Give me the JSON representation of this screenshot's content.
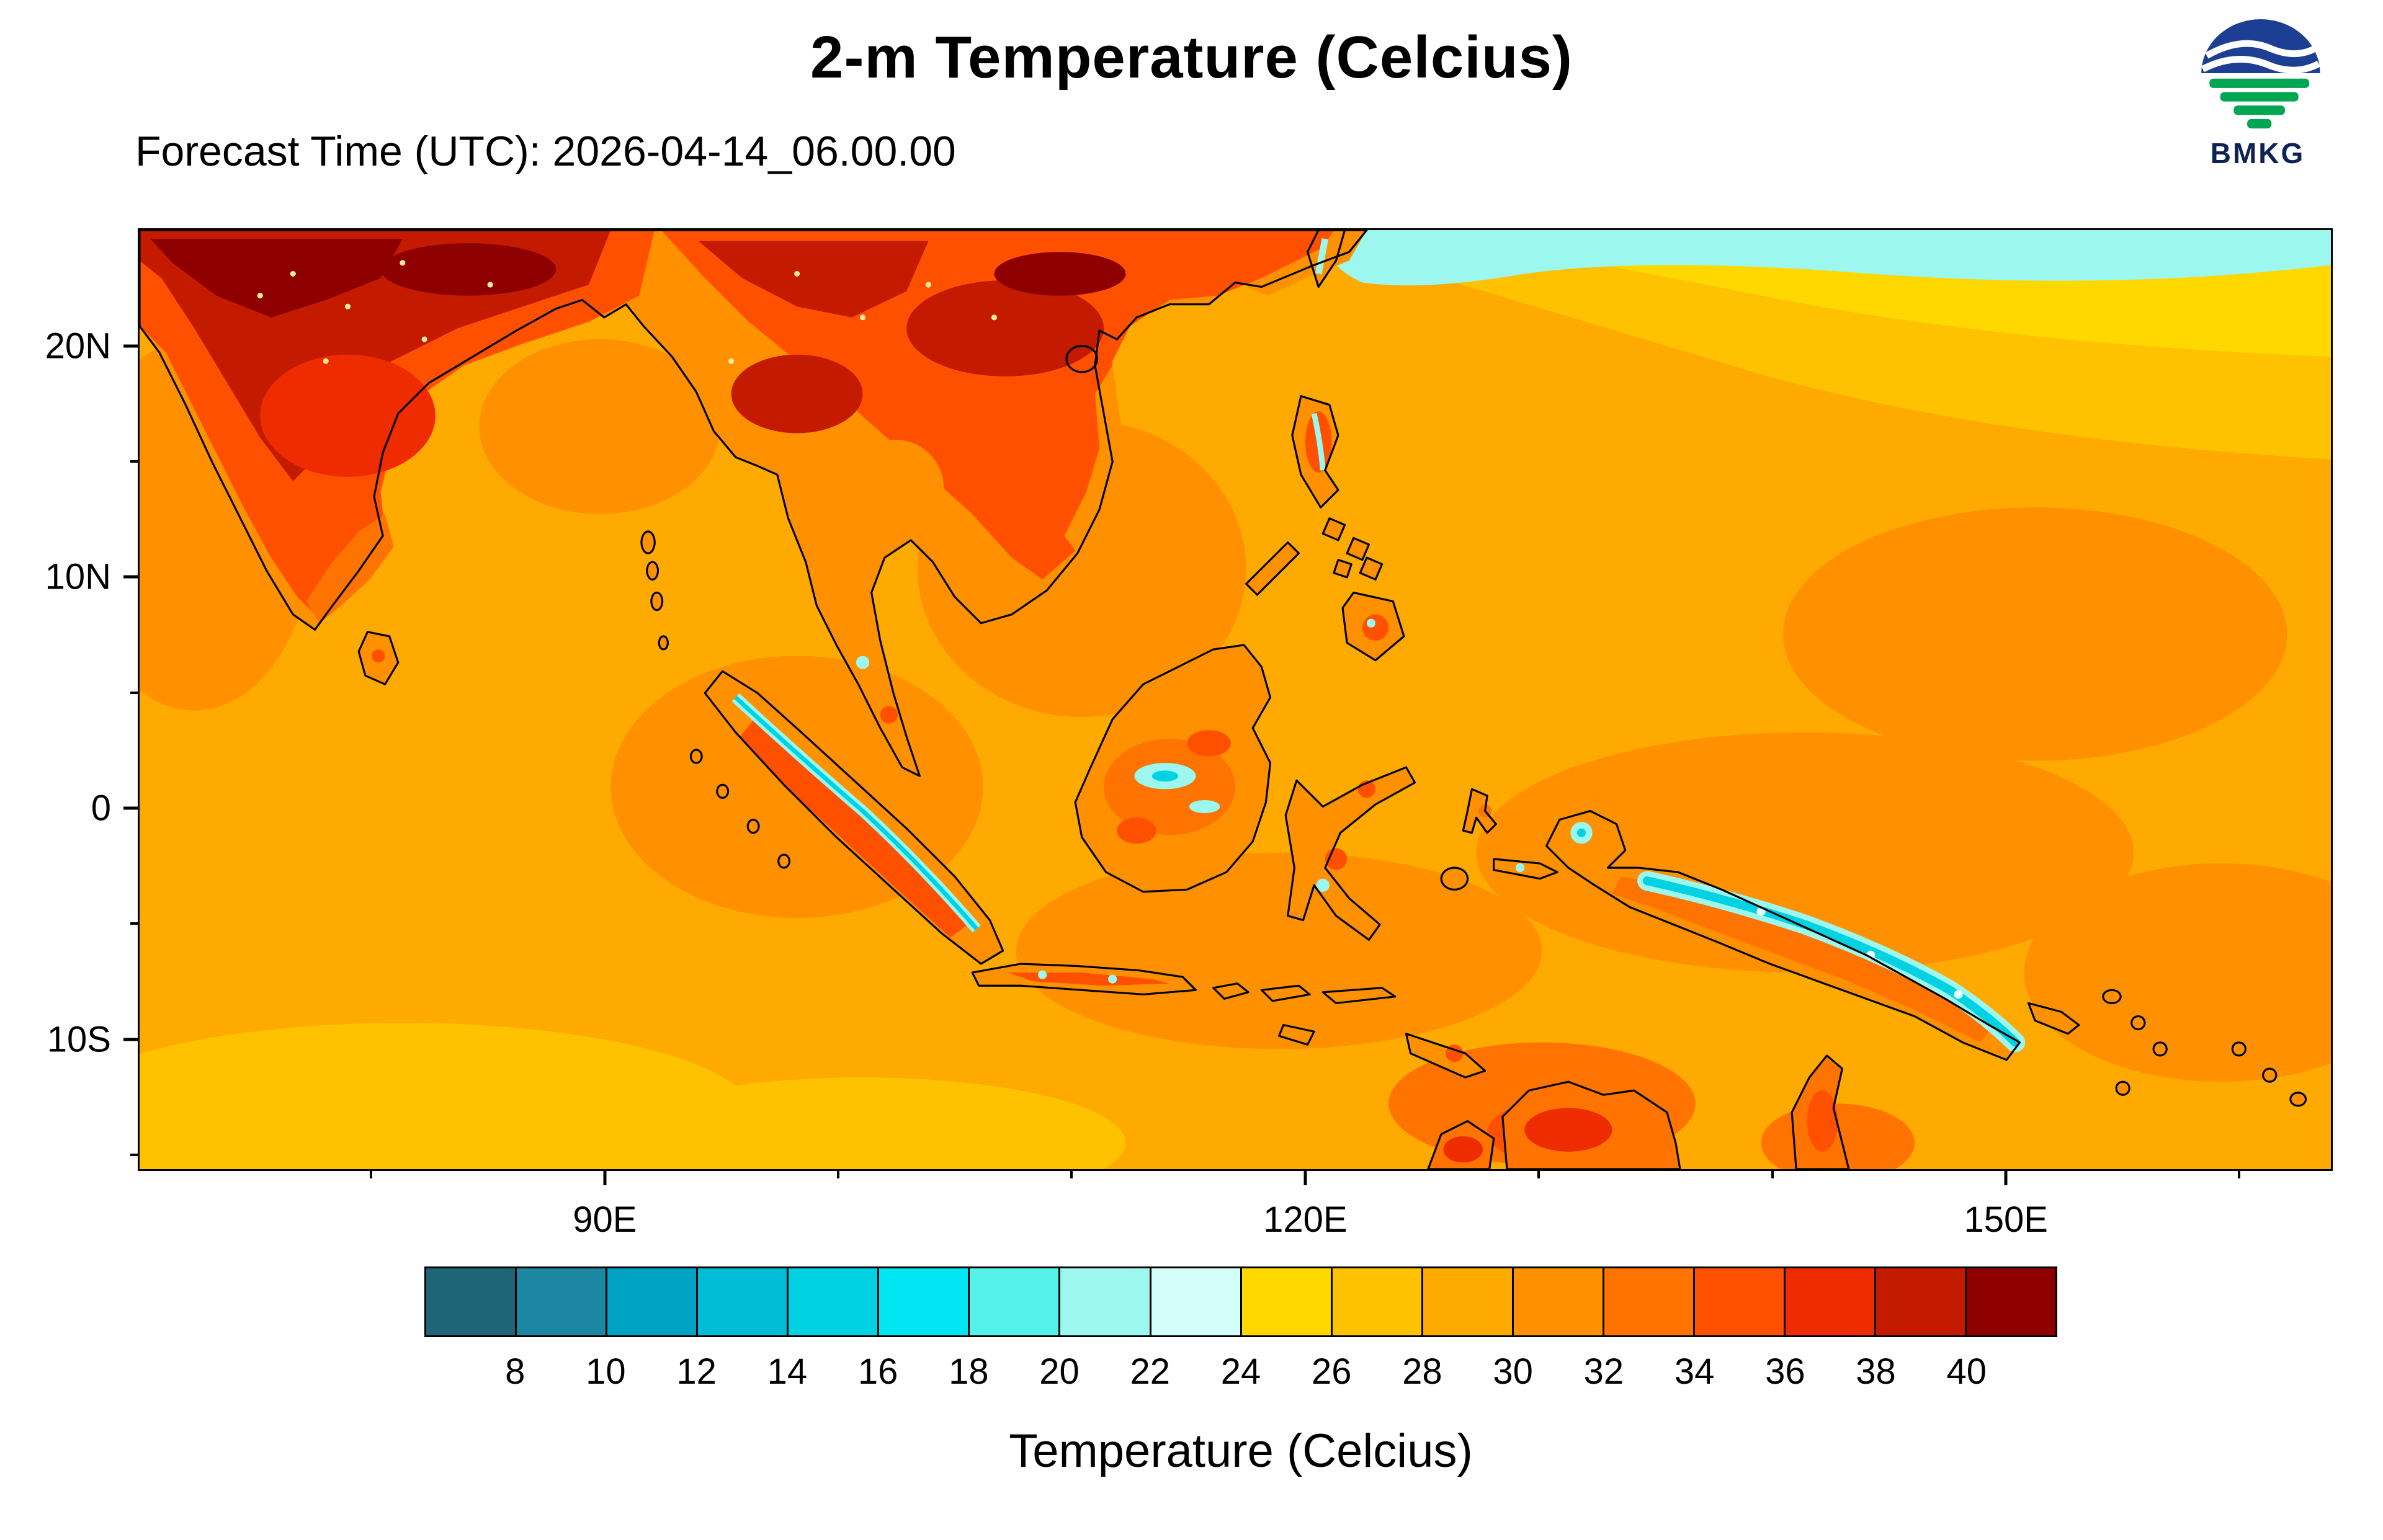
{
  "header": {
    "title": "2-m Temperature (Celcius)",
    "forecast_label": "Forecast Time (UTC): 2026-04-14_06.00.00"
  },
  "logo": {
    "text": "BMKG",
    "blue": "#1C3F94",
    "green": "#00A651"
  },
  "map": {
    "lat_ticks": [
      {
        "label": "20N",
        "pos": 12.49
      },
      {
        "label": "10N",
        "pos": 37.0
      },
      {
        "label": "0",
        "pos": 61.51
      },
      {
        "label": "10S",
        "pos": 86.02
      }
    ],
    "lat_minor_ticks": [
      24.74,
      49.25,
      73.77,
      98.28
    ],
    "lon_ticks": [
      {
        "label": "90E",
        "pos": 21.28
      },
      {
        "label": "120E",
        "pos": 53.19
      },
      {
        "label": "150E",
        "pos": 85.11
      }
    ],
    "lon_minor_ticks": [
      10.64,
      31.91,
      42.55,
      63.83,
      74.47,
      95.74
    ]
  },
  "colorbar": {
    "title": "Temperature (Celcius)",
    "labels": [
      "8",
      "10",
      "12",
      "14",
      "16",
      "18",
      "20",
      "22",
      "24",
      "26",
      "28",
      "30",
      "32",
      "34",
      "36",
      "38",
      "40"
    ],
    "colors": [
      "#1D6577",
      "#1B87A2",
      "#00A3C4",
      "#00BCD4",
      "#00D2E4",
      "#00E6F2",
      "#55F2EA",
      "#9CF8EF",
      "#D3FDF8",
      "#FFD800",
      "#FFC200",
      "#FFAA00",
      "#FF9100",
      "#FF7300",
      "#FF5000",
      "#EF2C00",
      "#C41A00",
      "#8E0000"
    ]
  }
}
